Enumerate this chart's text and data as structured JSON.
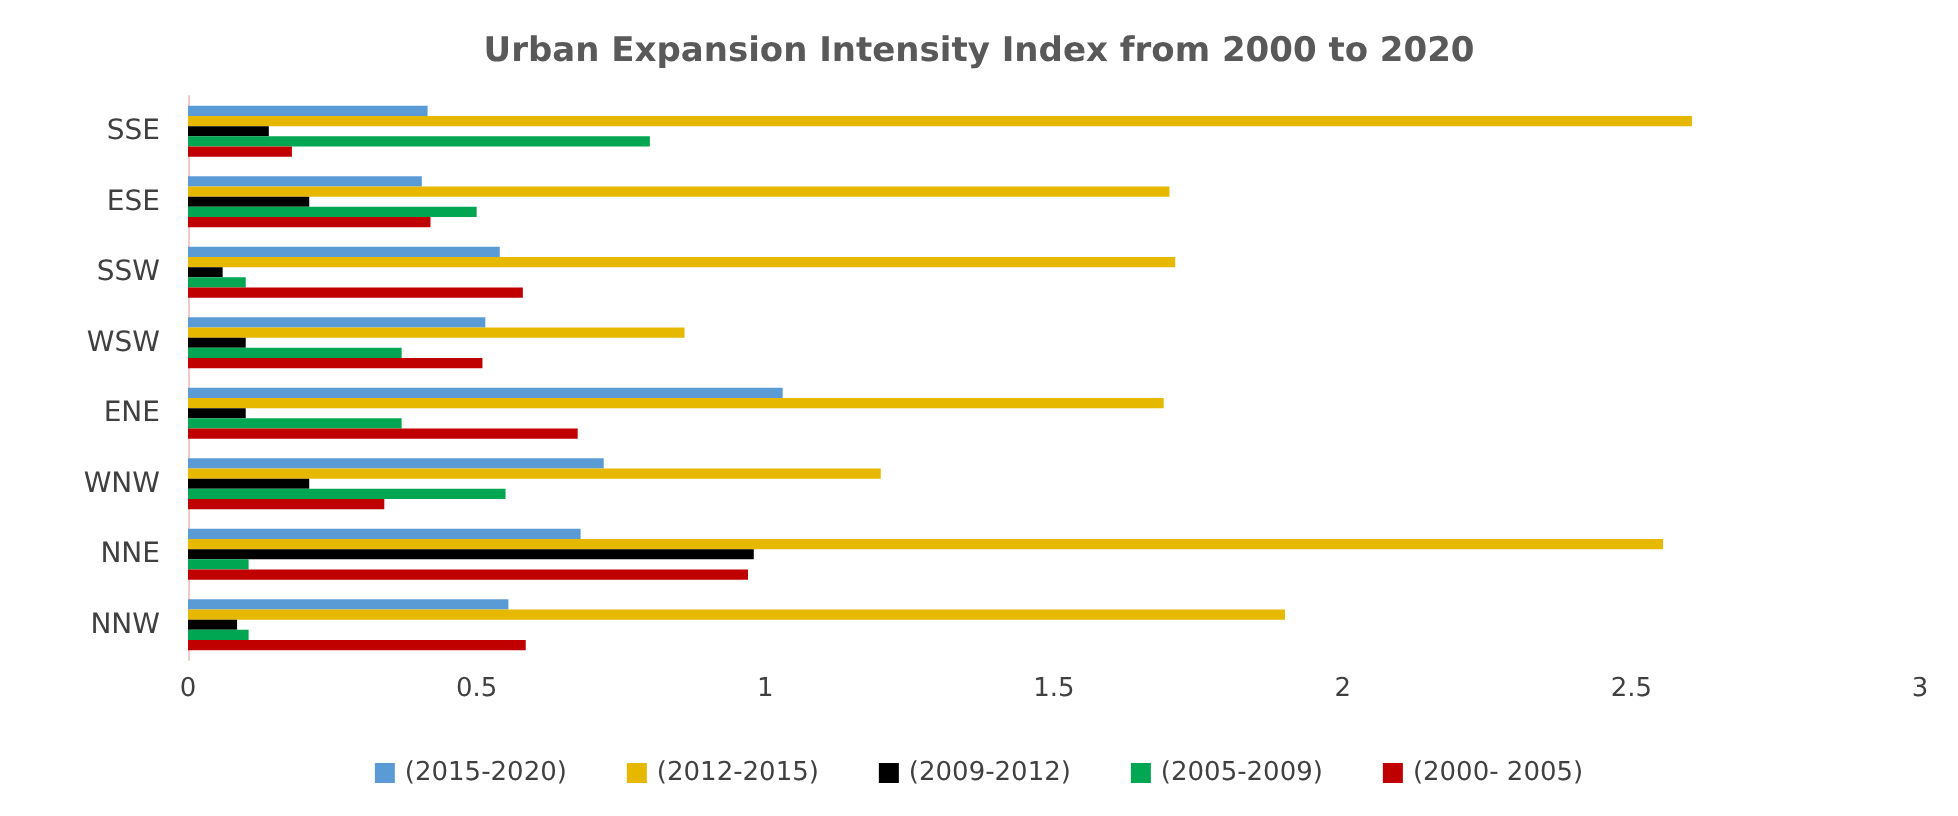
{
  "chart_data": {
    "type": "bar",
    "orientation": "horizontal",
    "title": "Urban Expansion Intensity Index from 2000 to 2020",
    "categories": [
      "SSE",
      "ESE",
      "SSW",
      "WSW",
      "ENE",
      "WNW",
      "NNE",
      "NNW"
    ],
    "series": [
      {
        "name": "(2015-2020)",
        "color": "#5b9bd5",
        "values": [
          0.415,
          0.405,
          0.54,
          0.515,
          1.03,
          0.72,
          0.68,
          0.555
        ]
      },
      {
        "name": "(2012-2015)",
        "color": "#e6b800",
        "values": [
          2.605,
          1.7,
          1.71,
          0.86,
          1.69,
          1.2,
          2.555,
          1.9
        ]
      },
      {
        "name": "(2009-2012)",
        "color": "#000000",
        "values": [
          0.14,
          0.21,
          0.06,
          0.1,
          0.1,
          0.21,
          0.98,
          0.085
        ]
      },
      {
        "name": "(2005-2009)",
        "color": "#00a651",
        "values": [
          0.8,
          0.5,
          0.1,
          0.37,
          0.37,
          0.55,
          0.105,
          0.105
        ]
      },
      {
        "name": "(2000- 2005)",
        "color": "#c00000",
        "values": [
          0.18,
          0.42,
          0.58,
          0.51,
          0.675,
          0.34,
          0.97,
          0.585
        ]
      }
    ],
    "xlim": [
      0,
      3
    ],
    "xticks": [
      0,
      0.5,
      1,
      1.5,
      2,
      2.5,
      3
    ],
    "grid": false,
    "legend": "bottom"
  }
}
